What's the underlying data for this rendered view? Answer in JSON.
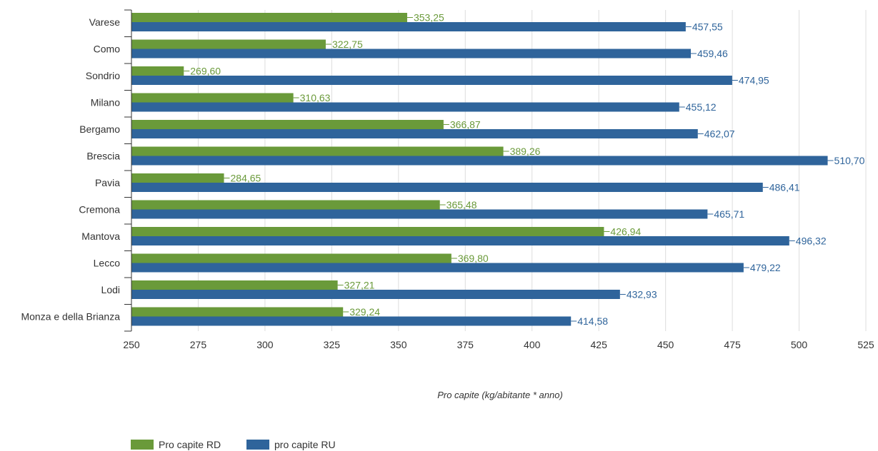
{
  "chart_data": {
    "type": "bar",
    "orientation": "horizontal",
    "categories": [
      "Varese",
      "Como",
      "Sondrio",
      "Milano",
      "Bergamo",
      "Brescia",
      "Pavia",
      "Cremona",
      "Mantova",
      "Lecco",
      "Lodi",
      "Monza e della Brianza"
    ],
    "series": [
      {
        "name": "Pro capite RD",
        "color": "#6a9a3a",
        "values": [
          353.25,
          322.75,
          269.6,
          310.63,
          366.87,
          389.26,
          284.65,
          365.48,
          426.94,
          369.8,
          327.21,
          329.24
        ],
        "labels": [
          "353,25",
          "322,75",
          "269,60",
          "310,63",
          "366,87",
          "389,26",
          "284,65",
          "365,48",
          "426,94",
          "369,80",
          "327,21",
          "329,24"
        ]
      },
      {
        "name": "pro capite RU",
        "color": "#2f649b",
        "values": [
          457.55,
          459.46,
          474.95,
          455.12,
          462.07,
          510.7,
          486.41,
          465.71,
          496.32,
          479.22,
          432.93,
          414.58
        ],
        "labels": [
          "457,55",
          "459,46",
          "474,95",
          "455,12",
          "462,07",
          "510,70",
          "486,41",
          "465,71",
          "496,32",
          "479,22",
          "432,93",
          "414,58"
        ]
      }
    ],
    "xlabel": "Pro capite (kg/abitante * anno)",
    "xlim": [
      250,
      525
    ],
    "xticks": [
      250,
      275,
      300,
      325,
      350,
      375,
      400,
      425,
      450,
      475,
      500,
      525
    ],
    "grid": true,
    "legend_position": "bottom-left",
    "label_color_rd": "#6a9a3a",
    "label_color_ru": "#2f649b",
    "grid_color": "#dddddd",
    "axis_color": "#333333"
  }
}
